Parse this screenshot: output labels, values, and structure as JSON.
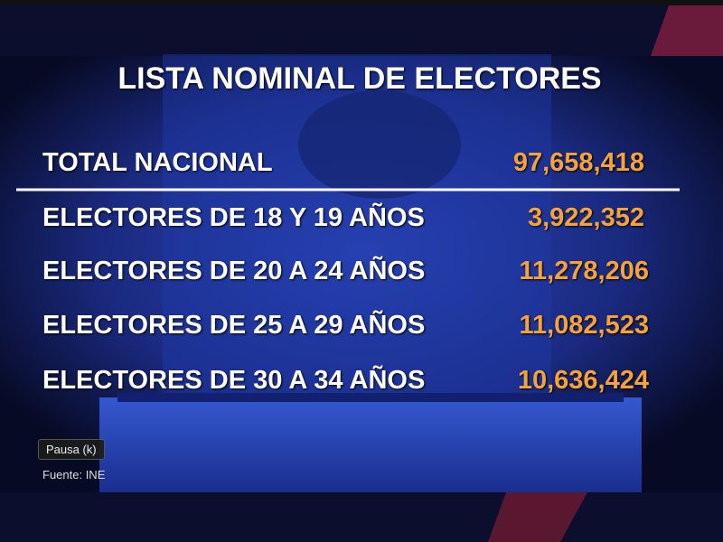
{
  "header": {
    "title": "LISTA NOMINAL DE ELECTORES"
  },
  "table": {
    "rows": [
      [
        "TOTAL NACIONAL",
        "97,658,418"
      ],
      [
        "ELECTORES DE 18 Y 19 AÑOS",
        "3,922,352"
      ],
      [
        "ELECTORES DE 20 A 24 AÑOS",
        "11,278,206"
      ],
      [
        "ELECTORES DE 25 A 29 AÑOS",
        "11,082,523"
      ],
      [
        "ELECTORES DE 30 A 34 AÑOS",
        "10,636,424"
      ]
    ]
  },
  "player": {
    "tooltip": "Pausa (k)"
  },
  "footer": {
    "source": "Fuente: INE"
  }
}
